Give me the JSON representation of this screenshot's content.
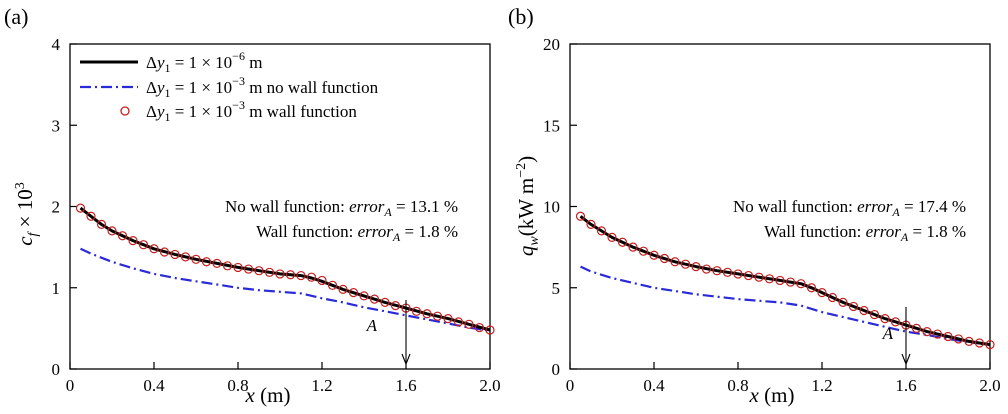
{
  "figure": {
    "panels": [
      "(a)",
      "(b)"
    ]
  },
  "chart_data": [
    {
      "type": "line",
      "panel_label": "(a)",
      "xlabel": "x (m)",
      "ylabel": "c_f × 10^3",
      "xlim": [
        0,
        2.0
      ],
      "ylim": [
        0,
        4
      ],
      "xticks": [
        "0",
        "0.4",
        "0.8",
        "1.2",
        "1.6",
        "2.0"
      ],
      "xtick_values": [
        0,
        0.4,
        0.8,
        1.2,
        1.6,
        2.0
      ],
      "yticks": [
        "0",
        "1",
        "2",
        "3",
        "4"
      ],
      "ytick_values": [
        0,
        1,
        2,
        3,
        4
      ],
      "grid": false,
      "legend_position": "top-left",
      "series": [
        {
          "name": "Δy1 = 1 × 10^-6 m",
          "style": "solid",
          "color": "#000000",
          "x": [
            0.05,
            0.1,
            0.15,
            0.2,
            0.3,
            0.4,
            0.5,
            0.6,
            0.7,
            0.8,
            0.9,
            1.0,
            1.05,
            1.1,
            1.15,
            1.2,
            1.3,
            1.4,
            1.5,
            1.6,
            1.7,
            1.8,
            1.9,
            2.0
          ],
          "y": [
            1.98,
            1.88,
            1.78,
            1.7,
            1.58,
            1.48,
            1.41,
            1.35,
            1.3,
            1.25,
            1.21,
            1.17,
            1.16,
            1.15,
            1.12,
            1.08,
            0.98,
            0.9,
            0.82,
            0.75,
            0.68,
            0.62,
            0.55,
            0.48
          ]
        },
        {
          "name": "Δy1 = 1 × 10^-3 m no wall function",
          "style": "dash-dot",
          "color": "#2a2ad8",
          "x": [
            0.05,
            0.1,
            0.2,
            0.3,
            0.4,
            0.5,
            0.6,
            0.7,
            0.8,
            0.9,
            1.0,
            1.1,
            1.2,
            1.3,
            1.4,
            1.5,
            1.6,
            1.7,
            1.8,
            1.9,
            2.0
          ],
          "y": [
            1.48,
            1.42,
            1.32,
            1.24,
            1.17,
            1.12,
            1.08,
            1.04,
            1.0,
            0.97,
            0.95,
            0.93,
            0.87,
            0.82,
            0.76,
            0.71,
            0.66,
            0.61,
            0.56,
            0.51,
            0.47
          ]
        },
        {
          "name": "Δy1 = 1 × 10^-3 m wall function",
          "style": "markers",
          "color": "#c81e1e",
          "x": [
            0.05,
            0.1,
            0.15,
            0.2,
            0.25,
            0.3,
            0.35,
            0.4,
            0.45,
            0.5,
            0.55,
            0.6,
            0.65,
            0.7,
            0.75,
            0.8,
            0.85,
            0.9,
            0.95,
            1.0,
            1.05,
            1.1,
            1.15,
            1.2,
            1.25,
            1.3,
            1.35,
            1.4,
            1.45,
            1.5,
            1.55,
            1.6,
            1.65,
            1.7,
            1.75,
            1.8,
            1.85,
            1.9,
            1.95,
            2.0
          ],
          "y": [
            1.98,
            1.88,
            1.78,
            1.7,
            1.64,
            1.58,
            1.53,
            1.48,
            1.44,
            1.41,
            1.38,
            1.35,
            1.32,
            1.3,
            1.27,
            1.25,
            1.23,
            1.21,
            1.19,
            1.17,
            1.16,
            1.15,
            1.13,
            1.09,
            1.03,
            0.98,
            0.94,
            0.9,
            0.86,
            0.82,
            0.78,
            0.75,
            0.71,
            0.68,
            0.65,
            0.62,
            0.58,
            0.55,
            0.51,
            0.48
          ]
        }
      ],
      "annotations": [
        {
          "text": "No wall function: error_A = 13.1 %"
        },
        {
          "text": "Wall function: error_A = 1.8 %"
        },
        {
          "text": "A",
          "arrow_x": 1.6
        }
      ]
    },
    {
      "type": "line",
      "panel_label": "(b)",
      "xlabel": "x (m)",
      "ylabel": "q_w (kW m^-2)",
      "xlim": [
        0,
        2.0
      ],
      "ylim": [
        0,
        20
      ],
      "xticks": [
        "0",
        "0.4",
        "0.8",
        "1.2",
        "1.6",
        "2.0"
      ],
      "xtick_values": [
        0,
        0.4,
        0.8,
        1.2,
        1.6,
        2.0
      ],
      "yticks": [
        "0",
        "5",
        "10",
        "15",
        "20"
      ],
      "ytick_values": [
        0,
        5,
        10,
        15,
        20
      ],
      "grid": false,
      "series": [
        {
          "name": "Δy1 = 1 × 10^-6 m",
          "style": "solid",
          "color": "#000000",
          "x": [
            0.05,
            0.1,
            0.15,
            0.2,
            0.3,
            0.4,
            0.5,
            0.6,
            0.7,
            0.8,
            0.9,
            1.0,
            1.05,
            1.1,
            1.15,
            1.2,
            1.3,
            1.4,
            1.5,
            1.6,
            1.7,
            1.8,
            1.9,
            2.0
          ],
          "y": [
            9.4,
            8.9,
            8.5,
            8.1,
            7.5,
            7.0,
            6.6,
            6.3,
            6.05,
            5.85,
            5.65,
            5.45,
            5.35,
            5.25,
            5.0,
            4.7,
            4.1,
            3.6,
            3.1,
            2.7,
            2.3,
            2.0,
            1.7,
            1.5
          ]
        },
        {
          "name": "Δy1 = 1 × 10^-3 m no wall function",
          "style": "dash-dot",
          "color": "#2a2ad8",
          "x": [
            0.05,
            0.1,
            0.2,
            0.3,
            0.4,
            0.5,
            0.6,
            0.7,
            0.8,
            0.9,
            1.0,
            1.1,
            1.2,
            1.3,
            1.4,
            1.5,
            1.6,
            1.7,
            1.8,
            1.9,
            2.0
          ],
          "y": [
            6.3,
            6.0,
            5.6,
            5.3,
            5.0,
            4.8,
            4.6,
            4.45,
            4.3,
            4.2,
            4.1,
            3.9,
            3.5,
            3.2,
            2.9,
            2.6,
            2.3,
            2.1,
            1.85,
            1.65,
            1.5
          ]
        },
        {
          "name": "Δy1 = 1 × 10^-3 m wall function",
          "style": "markers",
          "color": "#c81e1e",
          "x": [
            0.05,
            0.1,
            0.15,
            0.2,
            0.25,
            0.3,
            0.35,
            0.4,
            0.45,
            0.5,
            0.55,
            0.6,
            0.65,
            0.7,
            0.75,
            0.8,
            0.85,
            0.9,
            0.95,
            1.0,
            1.05,
            1.1,
            1.15,
            1.2,
            1.25,
            1.3,
            1.35,
            1.4,
            1.45,
            1.5,
            1.55,
            1.6,
            1.65,
            1.7,
            1.75,
            1.8,
            1.85,
            1.9,
            1.95,
            2.0
          ],
          "y": [
            9.4,
            8.9,
            8.5,
            8.1,
            7.8,
            7.5,
            7.25,
            7.0,
            6.8,
            6.6,
            6.45,
            6.3,
            6.15,
            6.05,
            5.95,
            5.85,
            5.75,
            5.65,
            5.55,
            5.45,
            5.35,
            5.25,
            5.0,
            4.7,
            4.4,
            4.1,
            3.85,
            3.6,
            3.35,
            3.1,
            2.9,
            2.7,
            2.5,
            2.3,
            2.15,
            2.0,
            1.85,
            1.7,
            1.6,
            1.5
          ]
        }
      ],
      "annotations": [
        {
          "text": "No wall function: error_A = 17.4 %"
        },
        {
          "text": "Wall function: error_A = 1.8 %"
        },
        {
          "text": "A",
          "arrow_x": 1.6
        }
      ]
    }
  ]
}
